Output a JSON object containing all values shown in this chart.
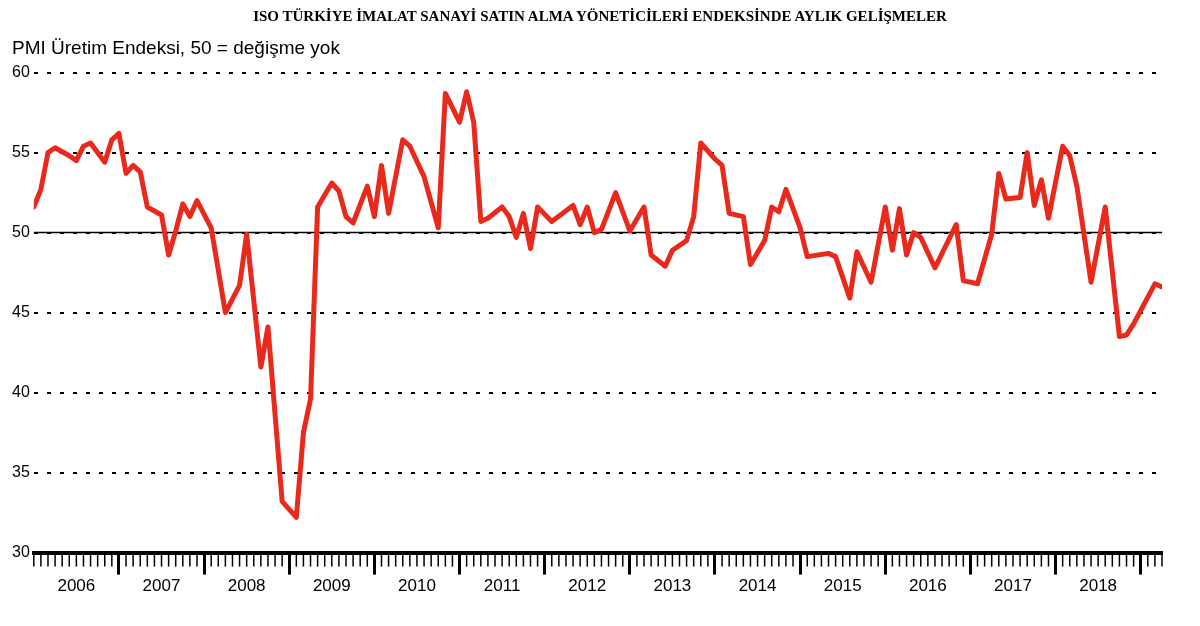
{
  "chart_data": {
    "type": "line",
    "title": "ISO TÜRKİYE İMALAT SANAYİ SATIN ALMA YÖNETİCİLERİ ENDEKSİNDE AYLIK GELİŞMELER",
    "ylabel": "PMI Üretim Endeksi, 50 = değişme yok",
    "ylim": [
      30,
      60
    ],
    "yticks": [
      30,
      35,
      40,
      45,
      50,
      55,
      60
    ],
    "grid": "y",
    "line_style": "solid",
    "marker": "none",
    "legend": false,
    "xlim": [
      "2006-01",
      "2019-04"
    ],
    "xticks": [
      {
        "value": "2006-07",
        "label": "2006"
      },
      {
        "value": "2007-07",
        "label": "2007"
      },
      {
        "value": "2008-07",
        "label": "2008"
      },
      {
        "value": "2009-07",
        "label": "2009"
      },
      {
        "value": "2010-07",
        "label": "2010"
      },
      {
        "value": "2011-07",
        "label": "2011"
      },
      {
        "value": "2012-07",
        "label": "2012"
      },
      {
        "value": "2013-07",
        "label": "2013"
      },
      {
        "value": "2014-07",
        "label": "2014"
      },
      {
        "value": "2015-07",
        "label": "2015"
      },
      {
        "value": "2016-07",
        "label": "2016"
      },
      {
        "value": "2017-07",
        "label": "2017"
      },
      {
        "value": "2018-07",
        "label": "2018"
      },
      {
        "value": "2007-01",
        "label": null
      },
      {
        "value": "2008-01",
        "label": null
      },
      {
        "value": "2009-01",
        "label": null
      },
      {
        "value": "2010-01",
        "label": null
      },
      {
        "value": "2011-01",
        "label": null
      },
      {
        "value": "2012-01",
        "label": null
      },
      {
        "value": "2013-01",
        "label": null
      },
      {
        "value": "2014-01",
        "label": null
      },
      {
        "value": "2015-01",
        "label": null
      },
      {
        "value": "2016-01",
        "label": null
      },
      {
        "value": "2017-01",
        "label": null
      },
      {
        "value": "2018-01",
        "label": null
      },
      {
        "value": "2019-01",
        "label": null
      }
    ],
    "ref_lines": [
      {
        "axis": "y",
        "value": 50,
        "label": null,
        "color": "#000000",
        "line_style": "solid"
      }
    ],
    "x": [
      "2006-01",
      "2006-02",
      "2006-03",
      "2006-04",
      "2006-06",
      "2006-07",
      "2006-08",
      "2006-09",
      "2006-11",
      "2006-12",
      "2007-01",
      "2007-02",
      "2007-03",
      "2007-04",
      "2007-05",
      "2007-07",
      "2007-08",
      "2007-09",
      "2007-10",
      "2007-11",
      "2007-12",
      "2008-02",
      "2008-04",
      "2008-06",
      "2008-07",
      "2008-09",
      "2008-10",
      "2008-12",
      "2009-02",
      "2009-03",
      "2009-04",
      "2009-05",
      "2009-07",
      "2009-08",
      "2009-09",
      "2009-10",
      "2009-12",
      "2010-01",
      "2010-02",
      "2010-03",
      "2010-05",
      "2010-06",
      "2010-08",
      "2010-10",
      "2010-11",
      "2011-01",
      "2011-02",
      "2011-03",
      "2011-04",
      "2011-05",
      "2011-07",
      "2011-08",
      "2011-09",
      "2011-10",
      "2011-11",
      "2011-12",
      "2012-02",
      "2012-05",
      "2012-06",
      "2012-07",
      "2012-08",
      "2012-09",
      "2012-11",
      "2013-01",
      "2013-03",
      "2013-04",
      "2013-06",
      "2013-07",
      "2013-09",
      "2013-10",
      "2013-11",
      "2014-01",
      "2014-02",
      "2014-03",
      "2014-05",
      "2014-06",
      "2014-08",
      "2014-09",
      "2014-10",
      "2014-11",
      "2015-01",
      "2015-02",
      "2015-05",
      "2015-06",
      "2015-08",
      "2015-09",
      "2015-11",
      "2016-01",
      "2016-02",
      "2016-03",
      "2016-04",
      "2016-05",
      "2016-06",
      "2016-08",
      "2016-11",
      "2016-12",
      "2017-02",
      "2017-04",
      "2017-05",
      "2017-06",
      "2017-08",
      "2017-09",
      "2017-10",
      "2017-11",
      "2017-12",
      "2018-02",
      "2018-03",
      "2018-04",
      "2018-06",
      "2018-08",
      "2018-10",
      "2018-11",
      "2018-12",
      "2019-03",
      "2019-04"
    ],
    "series": [
      {
        "color": "#e8291c",
        "values": [
          51.6,
          52.7,
          55.0,
          55.3,
          54.8,
          54.5,
          55.4,
          55.6,
          54.4,
          55.8,
          56.2,
          53.7,
          54.2,
          53.8,
          51.6,
          51.1,
          48.6,
          50.1,
          51.8,
          51.0,
          52.0,
          50.3,
          45.0,
          46.7,
          49.9,
          41.6,
          44.1,
          33.2,
          32.2,
          37.5,
          39.6,
          51.6,
          53.1,
          52.6,
          51.0,
          50.6,
          52.9,
          51.0,
          54.2,
          51.2,
          55.8,
          55.4,
          53.5,
          50.3,
          58.7,
          56.9,
          58.8,
          56.9,
          50.7,
          50.9,
          51.6,
          51.0,
          49.7,
          51.2,
          49.0,
          51.6,
          50.7,
          51.7,
          50.5,
          51.6,
          50.0,
          50.2,
          52.5,
          50.1,
          51.6,
          48.6,
          47.9,
          48.9,
          49.5,
          51.0,
          55.6,
          54.6,
          54.2,
          51.2,
          51.0,
          48.0,
          49.5,
          51.6,
          51.3,
          52.7,
          50.3,
          48.5,
          48.7,
          48.5,
          45.9,
          48.8,
          46.9,
          51.6,
          48.9,
          51.5,
          48.6,
          50.0,
          49.7,
          47.8,
          50.5,
          47.0,
          46.8,
          49.9,
          53.7,
          52.1,
          52.2,
          55.0,
          51.7,
          53.3,
          50.9,
          55.4,
          54.8,
          52.9,
          46.9,
          51.6,
          43.5,
          43.6,
          44.3,
          46.8,
          46.6
        ]
      }
    ]
  }
}
